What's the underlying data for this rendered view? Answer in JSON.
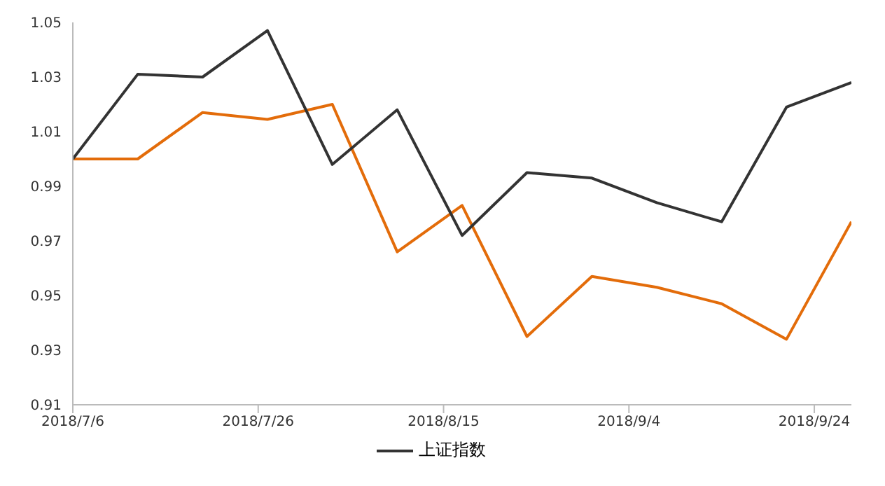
{
  "chart_data": {
    "type": "line",
    "x": [
      "2018-07-06",
      "2018-07-13",
      "2018-07-20",
      "2018-07-27",
      "2018-08-03",
      "2018-08-10",
      "2018-08-17",
      "2018-08-24",
      "2018-08-31",
      "2018-09-07",
      "2018-09-14",
      "2018-09-21",
      "2018-09-28"
    ],
    "series": [
      {
        "color": "#e36c0a",
        "values": [
          1.0,
          1.0,
          1.017,
          1.0145,
          1.02,
          0.966,
          0.983,
          0.935,
          0.957,
          0.953,
          0.947,
          0.934,
          0.977
        ]
      },
      {
        "name": "上证指数",
        "color": "#333333",
        "values": [
          1.0,
          1.031,
          1.03,
          1.047,
          0.998,
          1.018,
          0.972,
          0.995,
          0.993,
          0.984,
          0.977,
          1.019,
          1.028
        ]
      }
    ],
    "xlim": [
      "2018-07-06",
      "2018-09-28"
    ],
    "xticks": [
      {
        "value": "2018-07-06",
        "label": "2018/7/6"
      },
      {
        "value": "2018-07-26",
        "label": "2018/7/26"
      },
      {
        "value": "2018-08-15",
        "label": "2018/8/15"
      },
      {
        "value": "2018-09-04",
        "label": "2018/9/4"
      },
      {
        "value": "2018-09-24",
        "label": "2018/9/24"
      }
    ],
    "ylim": [
      0.91,
      1.05
    ],
    "yticks": [
      {
        "value": 0.91,
        "label": "0.91"
      },
      {
        "value": 0.93,
        "label": "0.93"
      },
      {
        "value": 0.95,
        "label": "0.95"
      },
      {
        "value": 0.97,
        "label": "0.97"
      },
      {
        "value": 0.99,
        "label": "0.99"
      },
      {
        "value": 1.01,
        "label": "1.01"
      },
      {
        "value": 1.03,
        "label": "1.03"
      },
      {
        "value": 1.05,
        "label": "1.05"
      }
    ],
    "grid": false,
    "legend": "bottom",
    "marker": "none",
    "line_style": "solid"
  }
}
